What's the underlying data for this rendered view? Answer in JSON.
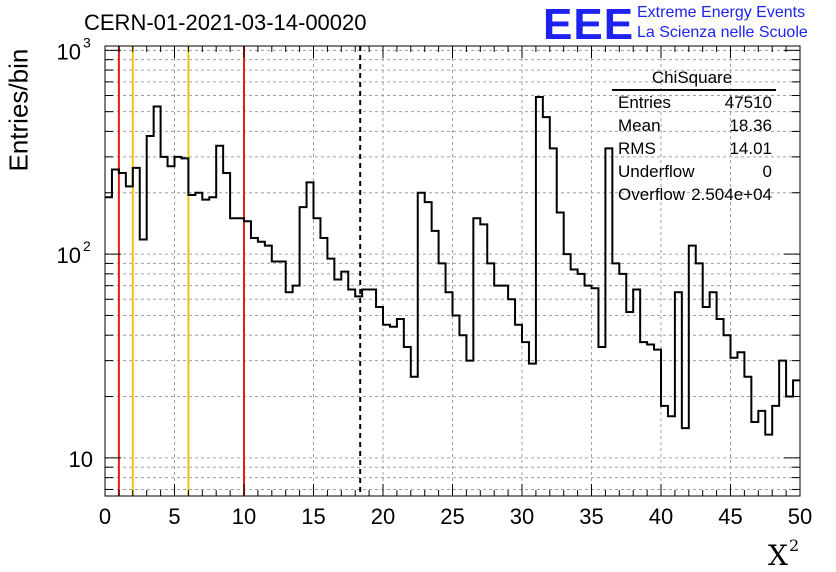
{
  "title": "CERN-01-2021-03-14-00020",
  "logo": {
    "mark": "EEE",
    "line1": "Extreme Energy Events",
    "line2": "La Scienza nelle Scuole",
    "color": "#1e22f0"
  },
  "axes": {
    "ylabel": "Entries/bin",
    "xlabel_base": "X",
    "xlabel_sup": "2"
  },
  "stats_box": {
    "title": "ChiSquare",
    "rows": [
      {
        "label": "Entries",
        "value": "47510"
      },
      {
        "label": "Mean",
        "value": "18.36"
      },
      {
        "label": "RMS",
        "value": "14.01"
      },
      {
        "label": "Underflow",
        "value": "0"
      },
      {
        "label": "Overflow",
        "value": "2.504e+04"
      }
    ]
  },
  "colors": {
    "histogram": "#000000",
    "red_lines": "#e0201a",
    "yellow_lines": "#f2c20f",
    "mean_line": "#000000",
    "grid": "#a0a0a0"
  },
  "chart_data": {
    "type": "line",
    "style": "step histogram",
    "xlim": [
      0,
      50
    ],
    "ylim": [
      6.5,
      1050
    ],
    "yscale": "log",
    "xticks": [
      0,
      5,
      10,
      15,
      20,
      25,
      30,
      35,
      40,
      45,
      50
    ],
    "xtick_labels": [
      "0",
      "5",
      "10",
      "15",
      "20",
      "25",
      "30",
      "35",
      "40",
      "45",
      "50"
    ],
    "ytick_labels": [
      {
        "value": 10,
        "label": "10"
      },
      {
        "value": 100,
        "label": "10",
        "exp": "2"
      },
      {
        "value": 1000,
        "label": "10",
        "exp": "3"
      }
    ],
    "grid": true,
    "bin_width": 0.5,
    "bin_start": 0,
    "bin_values": [
      190,
      260,
      250,
      215,
      265,
      118,
      380,
      530,
      300,
      270,
      300,
      295,
      195,
      200,
      185,
      190,
      340,
      250,
      150,
      150,
      145,
      120,
      115,
      110,
      92,
      92,
      65,
      70,
      170,
      225,
      150,
      120,
      95,
      75,
      82,
      67,
      62,
      67,
      67,
      55,
      45,
      44,
      48,
      35,
      25,
      200,
      180,
      130,
      90,
      65,
      50,
      40,
      30,
      150,
      140,
      90,
      70,
      70,
      60,
      45,
      37,
      29,
      590,
      470,
      330,
      160,
      100,
      84,
      80,
      70,
      68,
      35,
      330,
      90,
      80,
      52,
      67,
      37,
      36,
      34,
      18,
      16,
      65,
      14,
      110,
      90,
      55,
      65,
      48,
      40,
      31,
      33,
      25,
      15,
      17,
      13,
      18,
      30,
      20,
      24
    ],
    "vertical_lines": [
      {
        "x": 1,
        "color": "red"
      },
      {
        "x": 10,
        "color": "red"
      },
      {
        "x": 2,
        "color": "yellow"
      },
      {
        "x": 6,
        "color": "yellow"
      },
      {
        "x": 18.36,
        "color": "black",
        "style": "dashed"
      }
    ]
  }
}
